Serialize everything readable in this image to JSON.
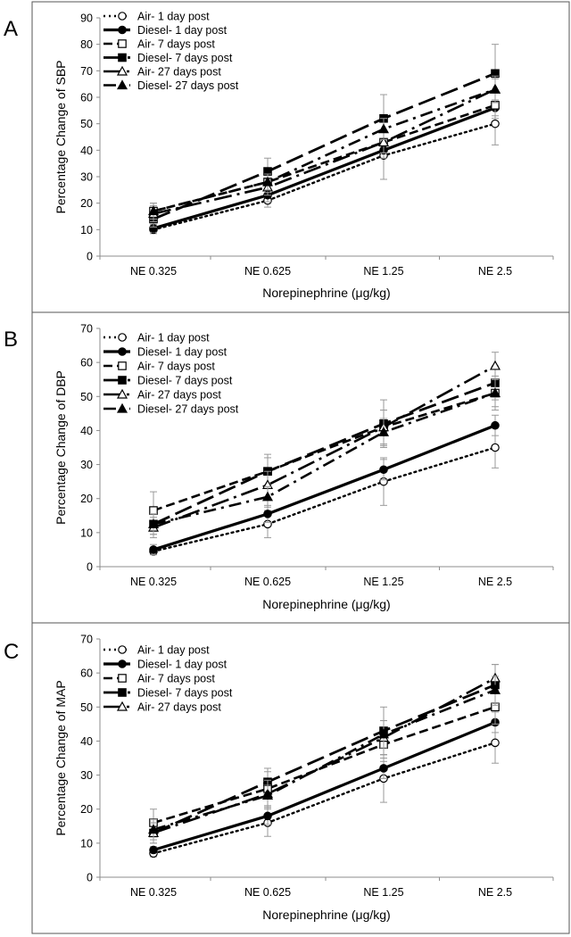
{
  "styles": {
    "air_1_day": {
      "dash": "2,4",
      "width": 2.4,
      "marker": "circle",
      "fill": "#ffffff"
    },
    "diesel_1_day": {
      "dash": "",
      "width": 3.2,
      "marker": "circle",
      "fill": "#000000"
    },
    "air_7_day": {
      "dash": "10,5",
      "width": 2.6,
      "marker": "square",
      "fill": "#ffffff"
    },
    "diesel_7_day": {
      "dash": "20,7",
      "width": 2.8,
      "marker": "square",
      "fill": "#000000"
    },
    "air_27_day": {
      "dash": "20,6,3,6",
      "width": 2.6,
      "marker": "triangle",
      "fill": "#ffffff"
    },
    "diesel_27_day": {
      "dash": "14,6,3,6",
      "width": 2.6,
      "marker": "triangle",
      "fill": "#000000"
    }
  },
  "chart_data": [
    {
      "panel": "A",
      "type": "line",
      "xlabel": "Norepinephrine (μg/kg)",
      "ylabel": "Percentage Change of SBP",
      "categories": [
        "NE 0.325",
        "NE 0.625",
        "NE 1.25",
        "NE 2.5"
      ],
      "ylim": [
        0,
        90
      ],
      "yticks": [
        "0",
        "10",
        "20",
        "30",
        "40",
        "50",
        "60",
        "70",
        "80",
        "90"
      ],
      "legend_position": "top-left",
      "series": [
        {
          "name": "Air- 1 day post",
          "style": "air_1_day",
          "values": [
            10,
            21,
            38,
            50
          ],
          "errors": [
            1.5,
            2.5,
            9,
            8
          ]
        },
        {
          "name": "Diesel- 1 day post",
          "style": "diesel_1_day",
          "values": [
            10.5,
            23,
            40,
            56
          ],
          "errors": [
            1.5,
            2.5,
            3,
            3
          ]
        },
        {
          "name": "Air- 7 days post",
          "style": "air_7_day",
          "values": [
            17,
            28,
            43,
            57
          ],
          "errors": [
            3,
            4,
            4,
            5
          ]
        },
        {
          "name": "Diesel- 7 days post",
          "style": "diesel_7_day",
          "values": [
            14,
            32,
            52,
            69
          ],
          "errors": [
            3,
            5,
            9,
            11
          ]
        },
        {
          "name": "Air- 27 days post",
          "style": "air_27_day",
          "values": [
            16,
            26,
            43,
            63
          ],
          "errors": [
            3,
            3,
            4,
            4
          ]
        },
        {
          "name": "Diesel- 27 days post",
          "style": "diesel_27_day",
          "values": [
            17,
            28,
            48,
            63
          ],
          "errors": [
            3,
            3,
            4,
            5
          ]
        }
      ]
    },
    {
      "panel": "B",
      "type": "line",
      "xlabel": "Norepinephrine (μg/kg)",
      "ylabel": "Percentage Change of DBP",
      "categories": [
        "NE 0.325",
        "NE 0.625",
        "NE 1.25",
        "NE 2.5"
      ],
      "ylim": [
        0,
        70
      ],
      "yticks": [
        "0",
        "10",
        "20",
        "30",
        "40",
        "50",
        "60",
        "70"
      ],
      "legend_position": "top-left",
      "series": [
        {
          "name": "Air- 1 day post",
          "style": "air_1_day",
          "values": [
            4.5,
            12.5,
            25,
            35
          ],
          "errors": [
            1,
            4,
            7,
            6
          ]
        },
        {
          "name": "Diesel- 1 day post",
          "style": "diesel_1_day",
          "values": [
            5,
            15.5,
            28.5,
            41.5
          ],
          "errors": [
            1.5,
            2.5,
            3,
            3
          ]
        },
        {
          "name": "Air- 7 days post",
          "style": "air_7_day",
          "values": [
            16.5,
            28,
            41,
            51
          ],
          "errors": [
            5.5,
            5,
            5,
            5
          ]
        },
        {
          "name": "Diesel- 7 days post",
          "style": "diesel_7_day",
          "values": [
            12.5,
            28,
            42,
            54
          ],
          "errors": [
            3,
            4,
            7,
            5
          ]
        },
        {
          "name": "Air- 27 days post",
          "style": "air_27_day",
          "values": [
            11.5,
            24,
            41,
            59
          ],
          "errors": [
            3,
            4,
            5,
            4
          ]
        },
        {
          "name": "Diesel- 27 days post",
          "style": "diesel_27_day",
          "values": [
            12.5,
            20.5,
            39.5,
            51
          ],
          "errors": [
            3,
            3,
            4,
            4
          ]
        }
      ]
    },
    {
      "panel": "C",
      "type": "line",
      "xlabel": "Norepinephrine (μg/kg)",
      "ylabel": "Percentage Change of MAP",
      "categories": [
        "NE 0.325",
        "NE 0.625",
        "NE 1.25",
        "NE 2.5"
      ],
      "ylim": [
        0,
        70
      ],
      "yticks": [
        "0",
        "10",
        "20",
        "30",
        "40",
        "50",
        "60",
        "70"
      ],
      "legend_position": "top-left",
      "series": [
        {
          "name": "Air- 1 day post",
          "style": "air_1_day",
          "values": [
            7,
            16,
            29,
            39.5
          ],
          "errors": [
            1,
            4,
            7,
            6
          ]
        },
        {
          "name": "Diesel- 1 day post",
          "style": "diesel_1_day",
          "values": [
            8,
            18,
            32,
            45.5
          ],
          "errors": [
            1,
            2.5,
            3,
            3
          ]
        },
        {
          "name": "Air- 7 days post",
          "style": "air_7_day",
          "values": [
            16,
            26,
            39,
            50
          ],
          "errors": [
            4,
            5,
            5,
            5
          ]
        },
        {
          "name": "Diesel- 7 days post",
          "style": "diesel_7_day",
          "values": [
            13,
            28,
            43,
            56.5
          ],
          "errors": [
            3,
            4,
            7,
            6
          ]
        },
        {
          "name": "Air- 27 days post",
          "style": "air_27_day",
          "values": [
            13,
            24.5,
            41,
            58.5
          ],
          "errors": [
            3,
            4,
            5,
            4
          ]
        },
        {
          "name": "",
          "style": "diesel_27_day",
          "values": [
            14,
            24,
            42,
            55
          ],
          "errors": [
            3,
            3,
            4,
            4
          ]
        }
      ]
    }
  ]
}
